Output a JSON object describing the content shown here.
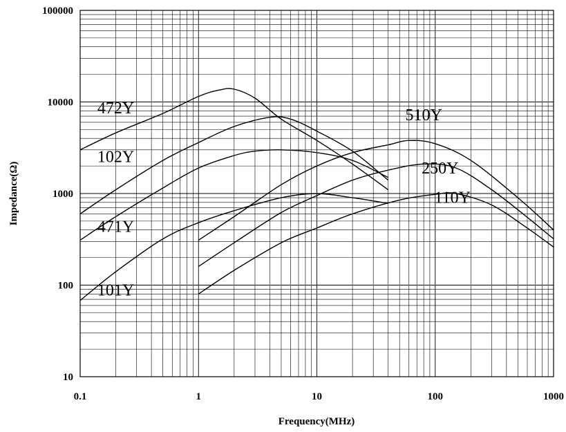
{
  "chart_data": {
    "type": "line",
    "title": "",
    "xlabel": "Frequency(MHz)",
    "ylabel": "Impedance(Ω)",
    "xscale": "log",
    "yscale": "log",
    "xlim": [
      0.1,
      1000
    ],
    "ylim": [
      10,
      100000
    ],
    "grid": true,
    "x_ticks": [
      {
        "value": 0.1,
        "label": "0.1"
      },
      {
        "value": 1,
        "label": "1"
      },
      {
        "value": 10,
        "label": "10"
      },
      {
        "value": 100,
        "label": "100"
      },
      {
        "value": 1000,
        "label": "1000"
      }
    ],
    "y_ticks": [
      {
        "value": 10,
        "label": "10"
      },
      {
        "value": 100,
        "label": "100"
      },
      {
        "value": 1000,
        "label": "1000"
      },
      {
        "value": 10000,
        "label": "10000"
      },
      {
        "value": 100000,
        "label": "100000"
      }
    ],
    "series": [
      {
        "name": "472Y",
        "label_at": {
          "x": 0.2,
          "y": 7500
        },
        "x": [
          0.1,
          0.2,
          0.5,
          1,
          1.5,
          2,
          3,
          5,
          10,
          20,
          40
        ],
        "y": [
          3000,
          4600,
          7500,
          11500,
          13500,
          13800,
          11000,
          6500,
          3800,
          2100,
          1100
        ]
      },
      {
        "name": "102Y",
        "label_at": {
          "x": 0.2,
          "y": 2200
        },
        "x": [
          0.1,
          0.2,
          0.5,
          1,
          2,
          4,
          6,
          10,
          20,
          40
        ],
        "y": [
          600,
          1100,
          2300,
          3600,
          5400,
          6800,
          6500,
          4800,
          2900,
          1400
        ]
      },
      {
        "name": "471Y",
        "label_at": {
          "x": 0.2,
          "y": 380
        },
        "x": [
          0.1,
          0.2,
          0.5,
          1,
          2,
          3,
          5,
          10,
          20,
          40
        ],
        "y": [
          310,
          560,
          1150,
          1900,
          2600,
          2900,
          3000,
          2800,
          2300,
          1500
        ]
      },
      {
        "name": "101Y",
        "label_at": {
          "x": 0.2,
          "y": 77
        },
        "x": [
          0.1,
          0.2,
          0.5,
          1,
          2,
          5,
          10,
          20,
          40
        ],
        "y": [
          68,
          140,
          320,
          480,
          650,
          900,
          1000,
          900,
          780
        ]
      },
      {
        "name": "510Y",
        "label_at": {
          "x": 80,
          "y": 6300
        },
        "x": [
          1,
          2,
          5,
          10,
          20,
          40,
          60,
          100,
          200,
          500,
          1000
        ],
        "y": [
          310,
          560,
          1250,
          2000,
          2800,
          3400,
          3800,
          3500,
          2300,
          900,
          400
        ]
      },
      {
        "name": "250Y",
        "label_at": {
          "x": 110,
          "y": 1650
        },
        "x": [
          1,
          2,
          5,
          10,
          20,
          40,
          80,
          150,
          300,
          600,
          1000
        ],
        "y": [
          160,
          290,
          620,
          950,
          1400,
          1800,
          2100,
          1900,
          1100,
          550,
          320
        ]
      },
      {
        "name": "110Y",
        "label_at": {
          "x": 140,
          "y": 790
        },
        "x": [
          1,
          2,
          5,
          10,
          20,
          50,
          100,
          150,
          300,
          600,
          1000
        ],
        "y": [
          80,
          145,
          290,
          420,
          600,
          850,
          980,
          1000,
          750,
          420,
          260
        ]
      }
    ]
  }
}
